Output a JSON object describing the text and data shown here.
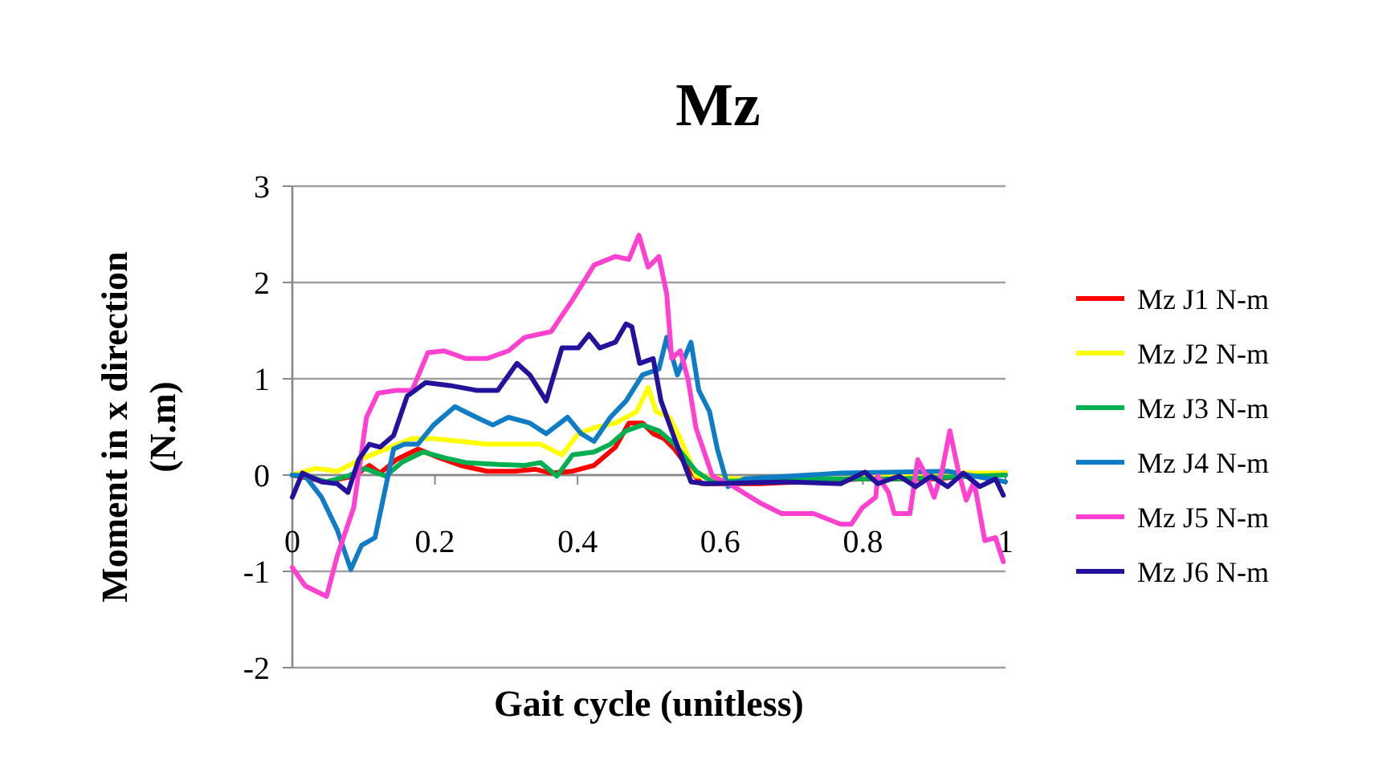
{
  "chart_data": {
    "type": "line",
    "title": "Mz",
    "xlabel": "Gait cycle (unitless)",
    "ylabel": "Moment in x direction (N.m)",
    "xlim": [
      0,
      1
    ],
    "xticks": [
      0,
      0.2,
      0.4,
      0.6,
      0.8,
      1
    ],
    "ylim": [
      -2,
      3
    ],
    "yticks": [
      -2,
      -1,
      0,
      1,
      2,
      3
    ],
    "grid": "y",
    "legend": "right",
    "marker": "none",
    "line_style": "solid",
    "series": [
      {
        "name": "Mz J1 N-m",
        "color": "#ff0000",
        "x": [
          0,
          0.048,
          0.086,
          0.108,
          0.123,
          0.146,
          0.176,
          0.206,
          0.236,
          0.273,
          0.311,
          0.341,
          0.363,
          0.393,
          0.423,
          0.453,
          0.472,
          0.491,
          0.506,
          0.521,
          0.536,
          0.559,
          0.574,
          0.656,
          0.8,
          0.9,
          1
        ],
        "values": [
          0,
          -0.07,
          -0.01,
          0.1,
          0.02,
          0.16,
          0.27,
          0.18,
          0.1,
          0.04,
          0.04,
          0.06,
          0.02,
          0.04,
          0.1,
          0.29,
          0.54,
          0.54,
          0.43,
          0.38,
          0.27,
          0.04,
          -0.09,
          -0.09,
          -0.04,
          -0.04,
          0.02
        ]
      },
      {
        "name": "Mz J2 N-m",
        "color": "#ffff00",
        "x": [
          0,
          0.033,
          0.063,
          0.101,
          0.131,
          0.168,
          0.198,
          0.236,
          0.273,
          0.311,
          0.348,
          0.378,
          0.401,
          0.423,
          0.453,
          0.483,
          0.499,
          0.51,
          0.529,
          0.544,
          0.566,
          0.619,
          0.769,
          0.9,
          1
        ],
        "values": [
          0,
          0.07,
          0.04,
          0.18,
          0.27,
          0.38,
          0.38,
          0.35,
          0.32,
          0.32,
          0.32,
          0.21,
          0.43,
          0.49,
          0.54,
          0.66,
          0.91,
          0.66,
          0.6,
          0.38,
          -0.01,
          -0.04,
          -0.04,
          0.02,
          0.02
        ]
      },
      {
        "name": "Mz J3 N-m",
        "color": "#00b050",
        "x": [
          0,
          0.018,
          0.048,
          0.078,
          0.101,
          0.131,
          0.153,
          0.183,
          0.213,
          0.243,
          0.288,
          0.326,
          0.348,
          0.371,
          0.393,
          0.423,
          0.446,
          0.468,
          0.491,
          0.514,
          0.536,
          0.566,
          0.589,
          0.7,
          0.85,
          1
        ],
        "values": [
          0,
          -0.01,
          -0.07,
          -0.01,
          0.07,
          -0.01,
          0.13,
          0.24,
          0.18,
          0.13,
          0.11,
          0.1,
          0.13,
          -0.01,
          0.21,
          0.24,
          0.32,
          0.46,
          0.52,
          0.46,
          0.32,
          0.04,
          -0.07,
          -0.04,
          -0.04,
          0
        ]
      },
      {
        "name": "Mz J4 N-m",
        "color": "#0f7cc6",
        "x": [
          0,
          0.018,
          0.041,
          0.063,
          0.082,
          0.097,
          0.116,
          0.131,
          0.142,
          0.157,
          0.176,
          0.198,
          0.228,
          0.258,
          0.281,
          0.303,
          0.333,
          0.356,
          0.386,
          0.405,
          0.423,
          0.446,
          0.468,
          0.491,
          0.514,
          0.525,
          0.54,
          0.559,
          0.57,
          0.585,
          0.596,
          0.611,
          0.634,
          0.769,
          0.919,
          1
        ],
        "values": [
          0,
          -0.01,
          -0.23,
          -0.57,
          -0.98,
          -0.73,
          -0.65,
          -0.12,
          0.27,
          0.32,
          0.32,
          0.52,
          0.71,
          0.6,
          0.52,
          0.6,
          0.54,
          0.43,
          0.6,
          0.43,
          0.35,
          0.6,
          0.77,
          1.04,
          1.1,
          1.43,
          1.04,
          1.38,
          0.88,
          0.66,
          0.27,
          -0.12,
          -0.04,
          0.02,
          0.04,
          -0.07
        ]
      },
      {
        "name": "Mz J5 N-m",
        "color": "#ff40d0",
        "x": [
          0,
          0.018,
          0.048,
          0.063,
          0.086,
          0.104,
          0.12,
          0.146,
          0.168,
          0.19,
          0.213,
          0.243,
          0.273,
          0.303,
          0.326,
          0.363,
          0.393,
          0.423,
          0.453,
          0.472,
          0.486,
          0.499,
          0.514,
          0.525,
          0.532,
          0.544,
          0.555,
          0.566,
          0.589,
          0.619,
          0.656,
          0.686,
          0.731,
          0.769,
          0.784,
          0.799,
          0.818,
          0.821,
          0.836,
          0.844,
          0.866,
          0.877,
          0.889,
          0.9,
          0.911,
          0.922,
          0.934,
          0.945,
          0.956,
          0.971,
          0.986,
          0.997
        ],
        "values": [
          -0.96,
          -1.15,
          -1.26,
          -0.84,
          -0.34,
          0.6,
          0.85,
          0.88,
          0.88,
          1.27,
          1.29,
          1.21,
          1.21,
          1.29,
          1.43,
          1.49,
          1.82,
          2.18,
          2.27,
          2.24,
          2.49,
          2.16,
          2.27,
          1.88,
          1.21,
          1.29,
          0.99,
          0.49,
          -0.01,
          -0.12,
          -0.29,
          -0.4,
          -0.4,
          -0.51,
          -0.51,
          -0.34,
          -0.23,
          -0.01,
          -0.18,
          -0.4,
          -0.4,
          0.16,
          -0.01,
          -0.23,
          0.04,
          0.46,
          0.04,
          -0.26,
          -0.07,
          -0.68,
          -0.65,
          -0.9
        ]
      },
      {
        "name": "Mz J6 N-m",
        "color": "#23129c",
        "x": [
          0,
          0.014,
          0.041,
          0.063,
          0.078,
          0.093,
          0.108,
          0.123,
          0.142,
          0.161,
          0.187,
          0.221,
          0.258,
          0.288,
          0.315,
          0.333,
          0.356,
          0.378,
          0.401,
          0.416,
          0.431,
          0.453,
          0.468,
          0.476,
          0.487,
          0.506,
          0.517,
          0.536,
          0.559,
          0.581,
          0.694,
          0.769,
          0.803,
          0.821,
          0.851,
          0.874,
          0.896,
          0.919,
          0.941,
          0.964,
          0.986,
          0.997
        ],
        "values": [
          -0.23,
          0.02,
          -0.07,
          -0.09,
          -0.18,
          0.16,
          0.32,
          0.29,
          0.41,
          0.82,
          0.96,
          0.93,
          0.88,
          0.88,
          1.16,
          1.04,
          0.77,
          1.32,
          1.32,
          1.46,
          1.32,
          1.38,
          1.57,
          1.54,
          1.16,
          1.21,
          0.77,
          0.38,
          -0.07,
          -0.09,
          -0.07,
          -0.09,
          0.03,
          -0.09,
          -0.01,
          -0.12,
          -0.01,
          -0.12,
          0.02,
          -0.12,
          -0.04,
          -0.21
        ]
      }
    ]
  }
}
